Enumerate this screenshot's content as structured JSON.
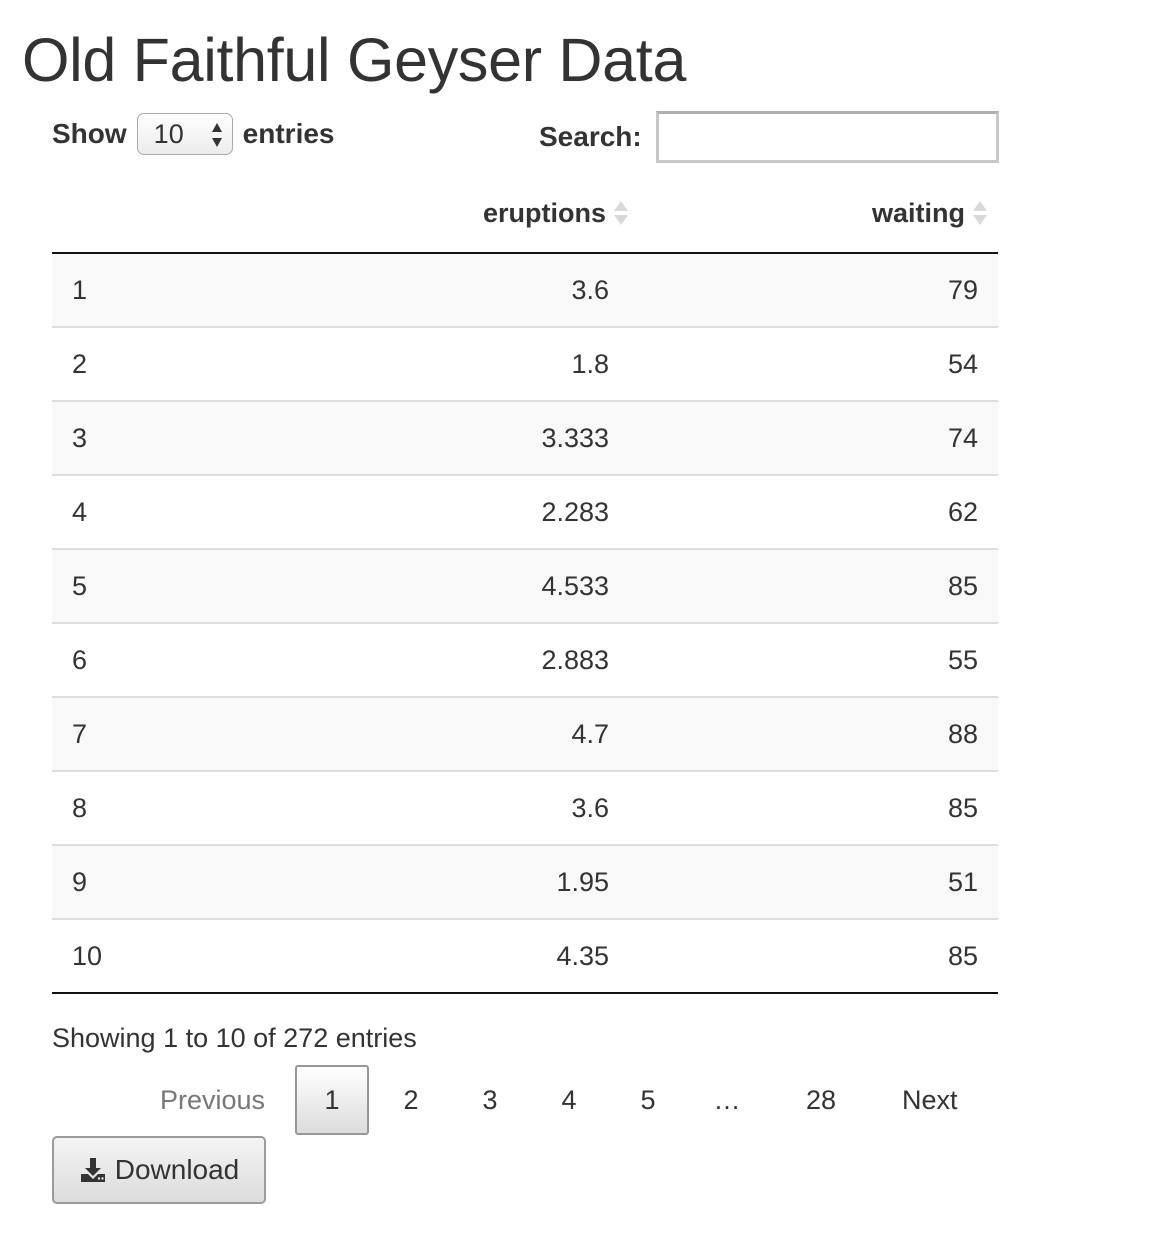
{
  "page": {
    "title": "Old Faithful Geyser Data"
  },
  "length_menu": {
    "prefix": "Show",
    "selected": "10",
    "suffix": "entries"
  },
  "search": {
    "label": "Search:",
    "value": ""
  },
  "table": {
    "columns": [
      "",
      "eruptions",
      "waiting"
    ],
    "rows": [
      [
        "1",
        "3.6",
        "79"
      ],
      [
        "2",
        "1.8",
        "54"
      ],
      [
        "3",
        "3.333",
        "74"
      ],
      [
        "4",
        "2.283",
        "62"
      ],
      [
        "5",
        "4.533",
        "85"
      ],
      [
        "6",
        "2.883",
        "55"
      ],
      [
        "7",
        "4.7",
        "88"
      ],
      [
        "8",
        "3.6",
        "85"
      ],
      [
        "9",
        "1.95",
        "51"
      ],
      [
        "10",
        "4.35",
        "85"
      ]
    ]
  },
  "info": {
    "text": "Showing 1 to 10 of 272 entries"
  },
  "pagination": {
    "previous": "Previous",
    "pages": [
      "1",
      "2",
      "3",
      "4",
      "5"
    ],
    "ellipsis": "…",
    "last_page": "28",
    "next": "Next",
    "current_page": "1"
  },
  "download": {
    "label": "Download",
    "icon": "download-icon"
  }
}
